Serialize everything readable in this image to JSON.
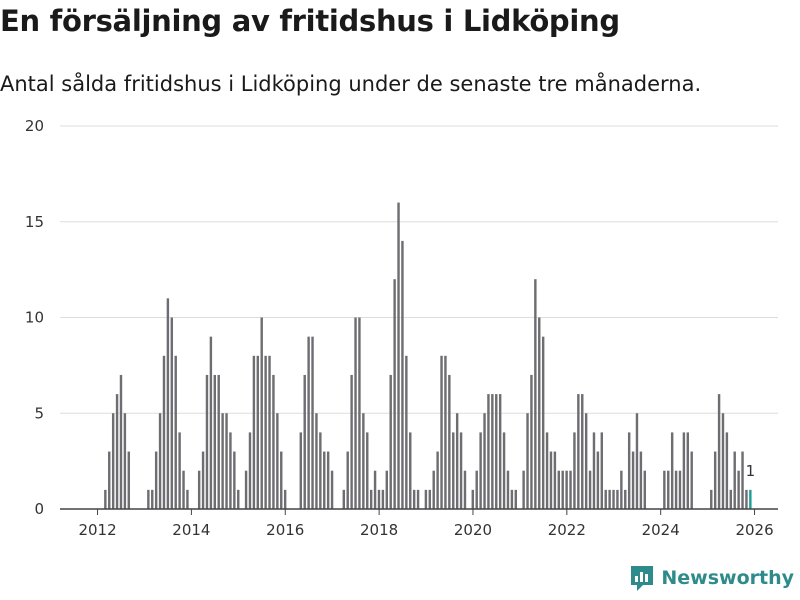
{
  "title": "En försäljning av fritidshus i Lidköping",
  "subtitle": "Antal sålda fritidshus i Lidköping under de senaste tre månaderna.",
  "brand": "Newsworthy",
  "colors": {
    "bar": "#6d6d72",
    "highlight": "#1f9e94",
    "grid": "#dddddd",
    "brand": "#2e8b8b"
  },
  "chart_data": {
    "type": "bar",
    "title": "En försäljning av fritidshus i Lidköping",
    "xlabel": "",
    "ylabel": "",
    "ylim": [
      0,
      20
    ],
    "yticks": [
      0,
      5,
      10,
      15,
      20
    ],
    "xlim": [
      2011.2,
      2026.5
    ],
    "xticks": [
      2012,
      2014,
      2016,
      2018,
      2020,
      2022,
      2024,
      2026
    ],
    "start": 2011.25,
    "step": 0.0833,
    "values": [
      0,
      0,
      0,
      0,
      0,
      0,
      0,
      0,
      0,
      0,
      0,
      1,
      3,
      5,
      6,
      7,
      5,
      3,
      0,
      0,
      0,
      0,
      1,
      1,
      3,
      5,
      8,
      11,
      10,
      8,
      4,
      2,
      1,
      0,
      0,
      2,
      3,
      7,
      9,
      7,
      7,
      5,
      5,
      4,
      3,
      1,
      0,
      2,
      4,
      8,
      8,
      10,
      8,
      8,
      7,
      5,
      3,
      1,
      0,
      0,
      0,
      4,
      7,
      9,
      9,
      5,
      4,
      3,
      3,
      2,
      0,
      0,
      1,
      3,
      7,
      10,
      10,
      5,
      4,
      1,
      2,
      1,
      1,
      2,
      7,
      12,
      16,
      14,
      8,
      4,
      1,
      1,
      0,
      1,
      1,
      2,
      3,
      8,
      8,
      7,
      4,
      5,
      4,
      2,
      0,
      1,
      2,
      4,
      5,
      6,
      6,
      6,
      6,
      4,
      2,
      1,
      1,
      0,
      2,
      5,
      7,
      12,
      10,
      9,
      4,
      3,
      3,
      2,
      2,
      2,
      2,
      4,
      6,
      6,
      5,
      2,
      4,
      3,
      4,
      1,
      1,
      1,
      1,
      2,
      1,
      4,
      3,
      5,
      3,
      2,
      0,
      0,
      0,
      0,
      2,
      2,
      4,
      2,
      2,
      4,
      4,
      3,
      0,
      0,
      0,
      0,
      1,
      3,
      6,
      5,
      4,
      1,
      3,
      2,
      3,
      1,
      1
    ],
    "highlight_label": "1"
  }
}
